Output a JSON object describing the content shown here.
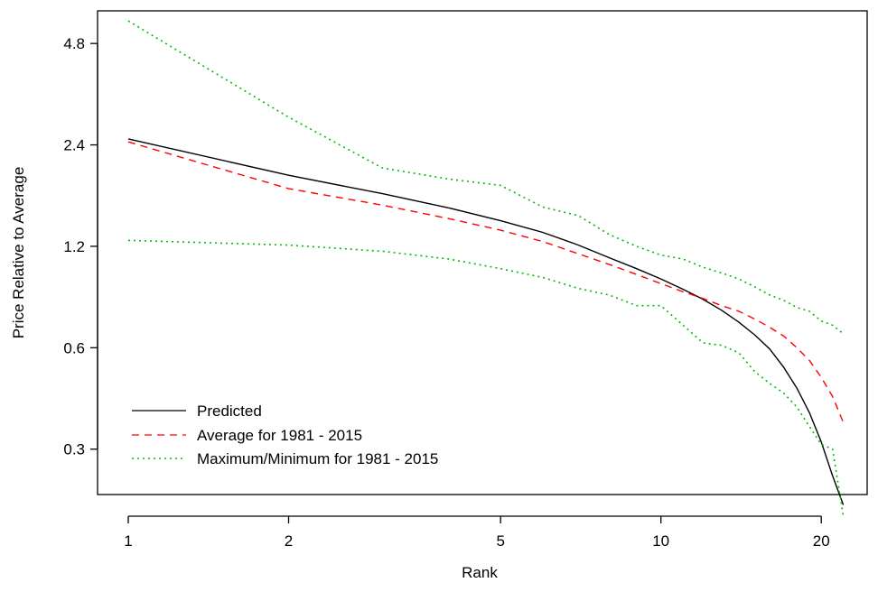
{
  "chart_data": {
    "type": "line",
    "title": "",
    "xlabel": "Rank",
    "ylabel": "Price Relative to Average",
    "x_scale": "log",
    "y_scale": "log",
    "xlim": [
      1,
      23
    ],
    "ylim": [
      0.22,
      6.0
    ],
    "x_ticks": [
      1,
      2,
      5,
      10,
      20
    ],
    "x_tick_labels": [
      "1",
      "2",
      "5",
      "10",
      "20"
    ],
    "y_ticks": [
      0.3,
      0.6,
      1.2,
      2.4,
      4.8
    ],
    "y_tick_labels": [
      "0.3",
      "0.6",
      "1.2",
      "2.4",
      "4.8"
    ],
    "grid": false,
    "legend_position": "bottom-left",
    "series": [
      {
        "name": "Predicted",
        "style": "solid",
        "color": "#000000",
        "x": [
          1,
          2,
          3,
          4,
          5,
          6,
          7,
          8,
          9,
          10,
          11,
          12,
          13,
          14,
          15,
          16,
          17,
          18,
          19,
          20,
          21,
          22
        ],
        "y": [
          2.5,
          1.95,
          1.72,
          1.56,
          1.43,
          1.32,
          1.21,
          1.11,
          1.03,
          0.96,
          0.895,
          0.835,
          0.775,
          0.715,
          0.655,
          0.595,
          0.525,
          0.455,
          0.385,
          0.315,
          0.25,
          0.205
        ]
      },
      {
        "name": "Average for 1981 - 2015",
        "style": "dashed",
        "color": "#ff0000",
        "x": [
          1,
          2,
          3,
          4,
          5,
          6,
          7,
          8,
          9,
          10,
          11,
          12,
          13,
          14,
          15,
          16,
          17,
          18,
          19,
          20,
          21,
          22
        ],
        "y": [
          2.45,
          1.78,
          1.59,
          1.45,
          1.34,
          1.24,
          1.14,
          1.06,
          0.99,
          0.93,
          0.88,
          0.84,
          0.8,
          0.77,
          0.73,
          0.69,
          0.65,
          0.6,
          0.55,
          0.49,
          0.43,
          0.36
        ]
      },
      {
        "name": "Maximum/Minimum for 1981 - 2015",
        "style": "dotted",
        "color": "#00bb00",
        "x": [
          1,
          2,
          3,
          4,
          5,
          6,
          7,
          8,
          9,
          10,
          11,
          12,
          13,
          14,
          15,
          16,
          17,
          18,
          19,
          20,
          21,
          22
        ],
        "y": [
          5.6,
          2.9,
          2.05,
          1.9,
          1.82,
          1.57,
          1.48,
          1.3,
          1.2,
          1.13,
          1.1,
          1.04,
          1.0,
          0.96,
          0.91,
          0.86,
          0.83,
          0.79,
          0.77,
          0.72,
          0.7,
          0.66
        ]
      },
      {
        "name": "",
        "style": "dotted",
        "color": "#00bb00",
        "x": [
          1,
          2,
          3,
          4,
          5,
          6,
          7,
          8,
          9,
          10,
          11,
          12,
          13,
          14,
          15,
          16,
          17,
          18,
          19,
          20,
          21,
          22
        ],
        "y": [
          1.25,
          1.21,
          1.16,
          1.1,
          1.03,
          0.97,
          0.9,
          0.86,
          0.8,
          0.8,
          0.7,
          0.62,
          0.61,
          0.58,
          0.51,
          0.47,
          0.44,
          0.4,
          0.35,
          0.31,
          0.3,
          0.19
        ]
      }
    ]
  }
}
